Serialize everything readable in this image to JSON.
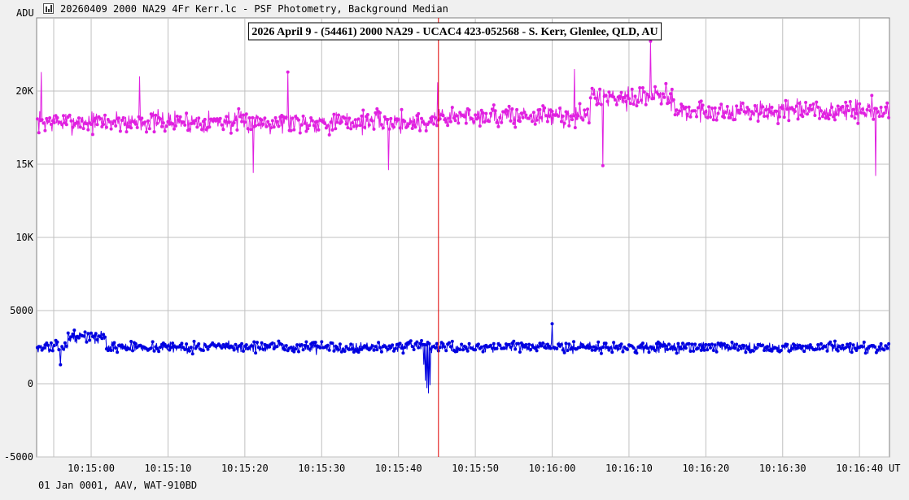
{
  "window": {
    "title": "20260409 2000 NA29 4Fr Kerr.lc - PSF Photometry, Background Median",
    "icon": "lightcurve-icon"
  },
  "footer": {
    "text": "01 Jan 0001, AAV, WAT-910BD"
  },
  "colors": {
    "plot_bg": "#ffffff",
    "grid": "#c0c0c0",
    "target": "#e020e0",
    "comparison": "#0000e0",
    "cursor": "#e00000"
  },
  "chart_data": {
    "type": "line",
    "title": "2026 April 9 - (54461) 2000 NA29 - UCAC4 423-052568 - S. Kerr, Glenlee, QLD, AU",
    "ylabel": "ADU",
    "xlabel": "UT",
    "ylim": [
      -5000,
      25000
    ],
    "yticks": [
      {
        "value": 20000,
        "label": "20K"
      },
      {
        "value": 15000,
        "label": "15K"
      },
      {
        "value": 10000,
        "label": "10K"
      },
      {
        "value": 5000,
        "label": "5000"
      },
      {
        "value": 0,
        "label": "0"
      },
      {
        "value": -5000,
        "label": "-5000"
      }
    ],
    "xlim": [
      "10:14:52.9",
      "10:16:43.9"
    ],
    "xticks": [
      "10:15:00",
      "10:15:10",
      "10:15:20",
      "10:15:30",
      "10:15:40",
      "10:15:50",
      "10:16:00",
      "10:16:10",
      "10:16:20",
      "10:16:30",
      "10:16:40"
    ],
    "cursor_time": "10:15:45.2",
    "grid": true,
    "series": [
      {
        "color": "#e020e0",
        "x_start": "10:14:53.0",
        "x_step_s": 0.1,
        "baseline_segments": [
          {
            "from": "10:14:53.0",
            "to": "10:15:45.0",
            "value": 17900
          },
          {
            "from": "10:15:45.0",
            "to": "10:16:05.0",
            "value": 18300
          },
          {
            "from": "10:16:05.0",
            "to": "10:16:16.0",
            "value": 19600
          },
          {
            "from": "10:16:16.0",
            "to": "10:16:43.9",
            "value": 18600
          }
        ],
        "noise": 1100,
        "seed": 7,
        "peaks": [
          {
            "x": "10:14:53.5",
            "y": 21300
          },
          {
            "x": "10:15:06.3",
            "y": 21000
          },
          {
            "x": "10:15:25.6",
            "y": 21300
          },
          {
            "x": "10:15:45.1",
            "y": 20600
          },
          {
            "x": "10:16:12.8",
            "y": 23400
          },
          {
            "x": "10:16:02.9",
            "y": 21500
          },
          {
            "x": "10:16:41.6",
            "y": 19700
          },
          {
            "x": "10:16:42.1",
            "y": 14200
          },
          {
            "x": "10:15:21.1",
            "y": 14400
          },
          {
            "x": "10:15:38.7",
            "y": 14600
          },
          {
            "x": "10:16:06.6",
            "y": 14900
          }
        ]
      },
      {
        "color": "#0000e0",
        "x_start": "10:14:53.0",
        "x_step_s": 0.1,
        "baseline_segments": [
          {
            "from": "10:14:53.0",
            "to": "10:14:57.0",
            "value": 2500
          },
          {
            "from": "10:14:57.0",
            "to": "10:15:02.0",
            "value": 3200
          },
          {
            "from": "10:15:02.0",
            "to": "10:16:43.9",
            "value": 2500
          }
        ],
        "noise": 550,
        "seed": 13,
        "dip": [
          {
            "x": "10:15:43.3",
            "y": 1300
          },
          {
            "x": "10:15:43.5",
            "y": 200
          },
          {
            "x": "10:15:43.7",
            "y": -300
          },
          {
            "x": "10:15:43.9",
            "y": -650
          },
          {
            "x": "10:15:44.1",
            "y": -100
          },
          {
            "x": "10:15:44.3",
            "y": 2100
          }
        ],
        "peaks": [
          {
            "x": "10:16:00.0",
            "y": 4100
          },
          {
            "x": "10:14:56.0",
            "y": 1300
          }
        ]
      }
    ]
  }
}
